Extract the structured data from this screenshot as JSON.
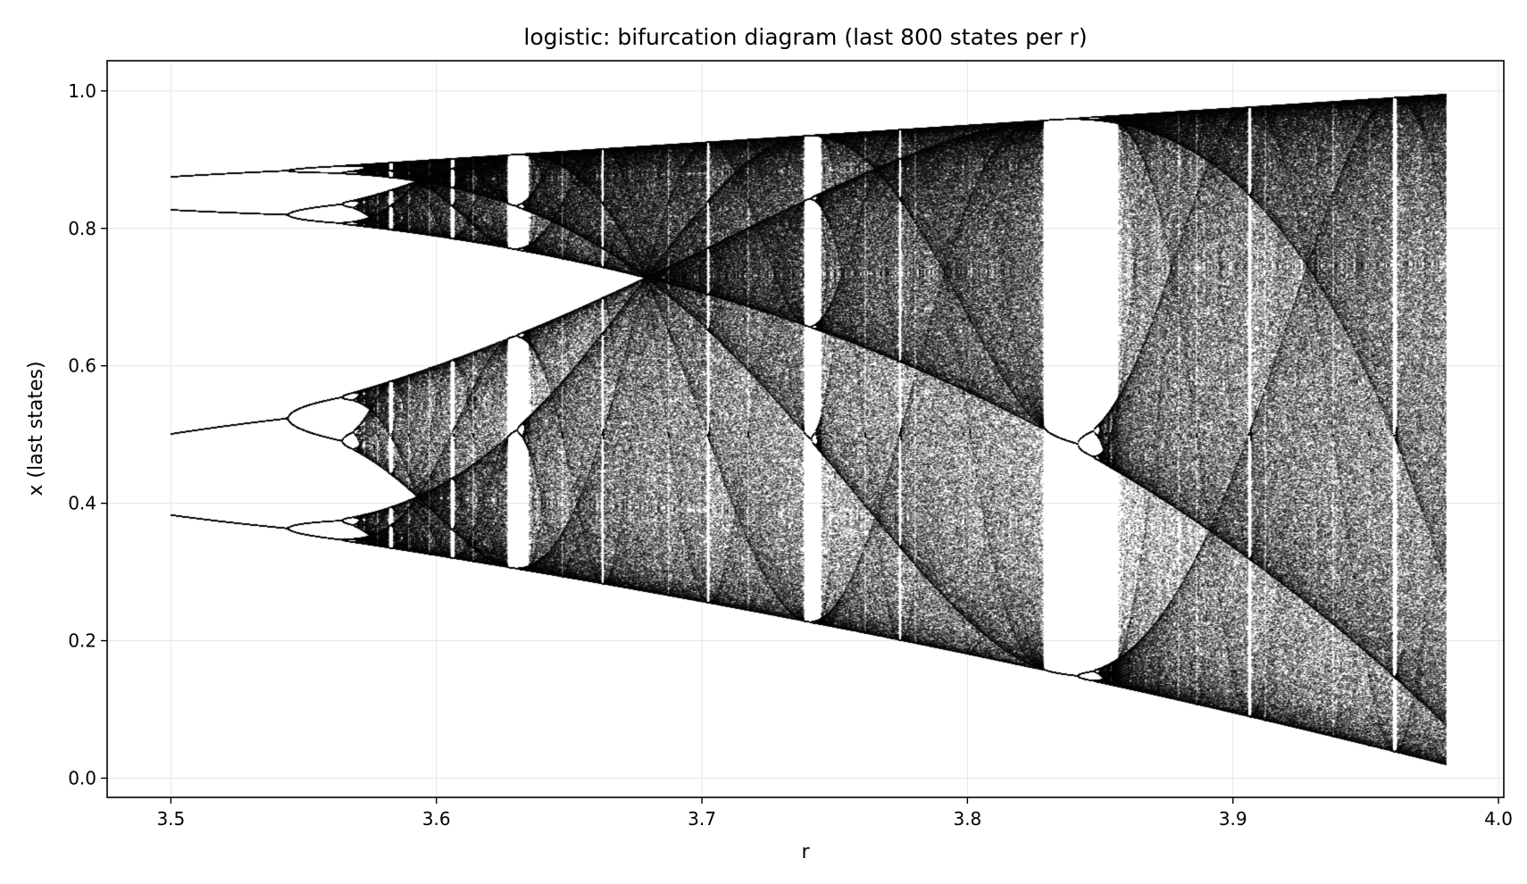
{
  "chart_data": {
    "type": "scatter",
    "title": "logistic: bifurcation diagram (last 800 states per r)",
    "xlabel": "r",
    "ylabel": "x (last states)",
    "map": "logistic",
    "states_per_r": 800,
    "r_range": [
      3.5,
      3.98
    ],
    "xlim": [
      3.476,
      4.002
    ],
    "ylim": [
      -0.028,
      1.044
    ],
    "xticks": [
      3.5,
      3.6,
      3.7,
      3.8,
      3.9,
      4.0
    ],
    "xtick_labels": [
      "3.5",
      "3.6",
      "3.7",
      "3.8",
      "3.9",
      "4.0"
    ],
    "yticks": [
      0.0,
      0.2,
      0.4,
      0.6,
      0.8,
      1.0
    ],
    "ytick_labels": [
      "0.0",
      "0.2",
      "0.4",
      "0.6",
      "0.8",
      "1.0"
    ],
    "grid": true,
    "legend": "none",
    "point_color": "#000000",
    "grid_color": "#e6e6e6",
    "sample_points": [
      {
        "r": 3.5,
        "x": [
          0.3828,
          0.5009,
          0.8269,
          0.875
        ]
      },
      {
        "r": 3.55,
        "x": [
          0.3548,
          0.3703,
          0.506,
          0.5405,
          0.8127,
          0.8278,
          0.8817,
          0.8874
        ]
      },
      {
        "r": 3.63,
        "x": [
          0.3078,
          0.7733,
          0.5013,
          0.887,
          0.359,
          0.8342,
          0.4957,
          0.9071
        ]
      },
      {
        "r": 3.74,
        "x": [
          0.2312,
          0.6645,
          0.8337,
          0.5184,
          0.9341
        ]
      },
      {
        "r": 3.83,
        "x": [
          0.1561,
          0.5046,
          0.9574
        ]
      },
      {
        "r": 3.98,
        "x": [
          0.0198,
          0.0774,
          0.2842,
          0.8096,
          0.6135,
          0.9437,
          0.2114,
          0.6636
        ]
      }
    ]
  }
}
